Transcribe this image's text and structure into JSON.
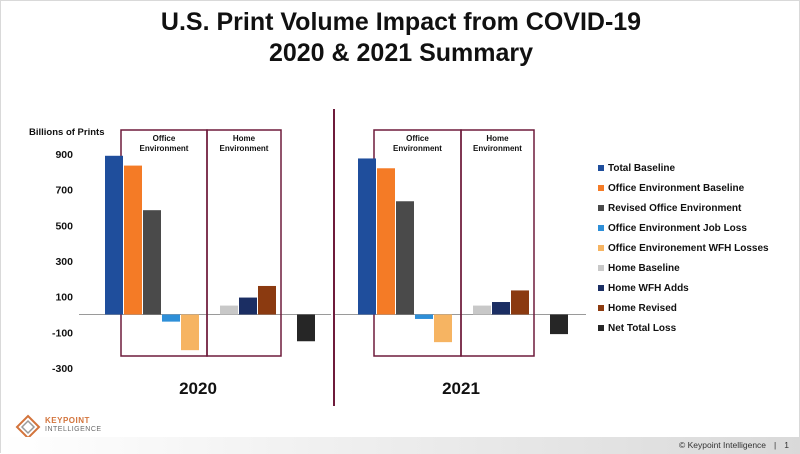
{
  "header": {
    "title_line1": "U.S. Print Volume Impact from COVID-19",
    "title_line2": "2020 & 2021 Summary"
  },
  "chart_data": {
    "type": "bar",
    "ylabel": "Billions of Prints",
    "ylim": [
      -300,
      900
    ],
    "yticks": [
      900,
      700,
      500,
      300,
      100,
      -100,
      -300
    ],
    "series": [
      {
        "name": "Total Baseline",
        "color": "#1f4e9c"
      },
      {
        "name": "Office Environment Baseline",
        "color": "#f47b26"
      },
      {
        "name": "Revised Office Environment",
        "color": "#4a4a4a"
      },
      {
        "name": "Office Environment Job Loss",
        "color": "#2e8fd8"
      },
      {
        "name": "Office Environement WFH Losses",
        "color": "#f6b462"
      },
      {
        "name": "Home Baseline",
        "color": "#c8c8c8"
      },
      {
        "name": "Home WFH Adds",
        "color": "#1b2e63"
      },
      {
        "name": "Home Revised",
        "color": "#8b3a10"
      },
      {
        "name": "Net Total Loss",
        "color": "#262626"
      }
    ],
    "groups": [
      {
        "label": "2020",
        "values": [
          890,
          835,
          585,
          -40,
          -200,
          50,
          95,
          160,
          -150
        ]
      },
      {
        "label": "2021",
        "values": [
          875,
          820,
          635,
          -25,
          -155,
          50,
          70,
          135,
          -110
        ]
      }
    ],
    "box_labels": {
      "office": "Office Environment",
      "home": "Home Environment"
    },
    "legend_position": "right",
    "grid": false
  },
  "footer": {
    "copyright": "© Keypoint Intelligence",
    "separator": "|",
    "page": "1"
  },
  "logo": {
    "line1": "KEYPOINT",
    "line2": "INTELLIGENCE"
  }
}
